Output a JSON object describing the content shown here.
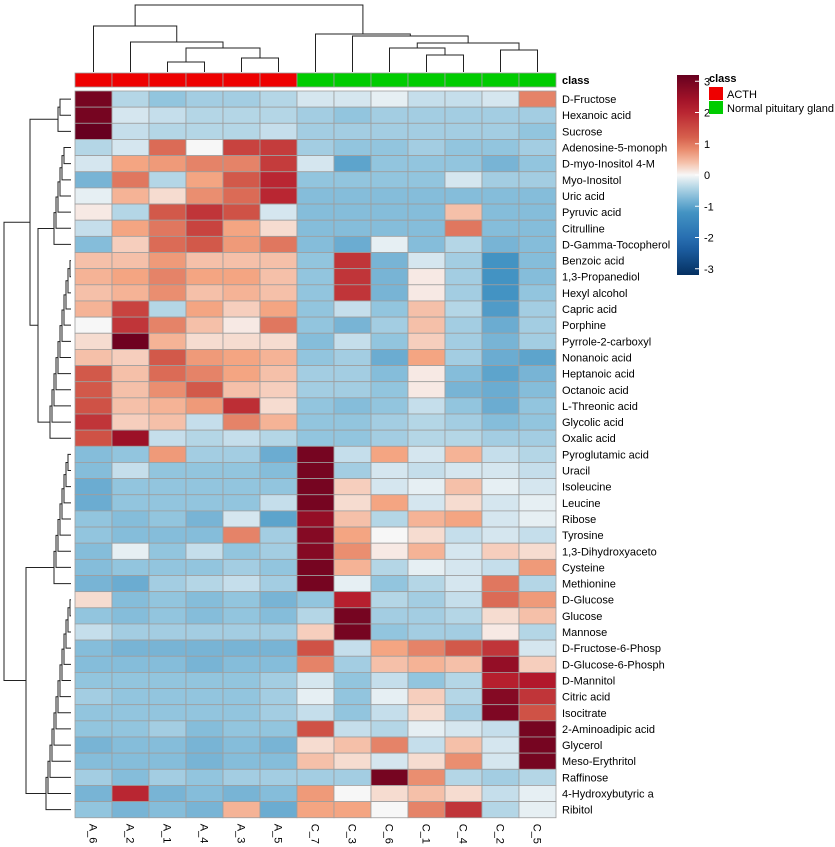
{
  "chart_data": {
    "type": "heatmap",
    "title": "",
    "columns": [
      "A_6",
      "A_2",
      "A_1",
      "A_4",
      "A_3",
      "A_5",
      "C_7",
      "C_3",
      "C_6",
      "C_1",
      "C_4",
      "C_2",
      "C_5"
    ],
    "column_class": [
      "ACTH",
      "ACTH",
      "ACTH",
      "ACTH",
      "ACTH",
      "ACTH",
      "Normal pituitary gland",
      "Normal pituitary gland",
      "Normal pituitary gland",
      "Normal pituitary gland",
      "Normal pituitary gland",
      "Normal pituitary gland",
      "Normal pituitary gland"
    ],
    "rows": [
      "D-Fructose",
      "Hexanoic acid",
      "Sucrose",
      "Adenosine-5-monoph",
      "D-myo-Inositol 4-M",
      "Myo-Inositol",
      "Uric acid",
      "Pyruvic acid",
      "Citrulline",
      "D-Gamma-Tocopherol",
      "Benzoic acid",
      "1,3-Propanediol",
      "Hexyl alcohol",
      "Capric acid",
      "Porphine",
      "Pyrrole-2-carboxyl",
      "Nonanoic acid",
      "Heptanoic acid",
      "Octanoic acid",
      "L-Threonic acid",
      "Glycolic acid",
      "Oxalic acid",
      "Pyroglutamic acid",
      "Uracil",
      "Isoleucine",
      "Leucine",
      "Ribose",
      "Tyrosine",
      "1,3-Dihydroxyaceto",
      "Cysteine",
      "Methionine",
      "D-Glucose",
      "Glucose",
      "Mannose",
      "D-Fructose-6-Phosp",
      "D-Glucose-6-Phosph",
      "D-Mannitol",
      "Citric acid",
      "Isocitrate",
      "2-Aminoadipic acid",
      "Glycerol",
      "Meso-Erythritol",
      "Raffinose",
      "4-Hydroxybutyric a",
      "Ribitol"
    ],
    "values": [
      [
        3.0,
        -0.4,
        -0.6,
        -0.5,
        -0.5,
        -0.4,
        -0.2,
        -0.2,
        -0.1,
        -0.3,
        -0.3,
        -0.2,
        0.9
      ],
      [
        3.0,
        -0.2,
        -0.3,
        -0.4,
        -0.4,
        -0.4,
        -0.5,
        -0.6,
        -0.5,
        -0.5,
        -0.5,
        -0.5,
        -0.5
      ],
      [
        3.2,
        -0.3,
        -0.4,
        -0.4,
        -0.4,
        -0.3,
        -0.5,
        -0.5,
        -0.5,
        -0.5,
        -0.5,
        -0.5,
        -0.6
      ],
      [
        -0.4,
        -0.2,
        1.1,
        0.0,
        1.6,
        1.7,
        -0.5,
        -0.6,
        -0.6,
        -0.5,
        -0.6,
        -0.6,
        -0.5
      ],
      [
        -0.2,
        0.6,
        0.7,
        0.9,
        0.9,
        1.7,
        -0.2,
        -1.0,
        -0.6,
        -0.6,
        -0.6,
        -0.8,
        -0.6
      ],
      [
        -0.8,
        1.0,
        -0.4,
        0.6,
        1.3,
        2.0,
        -0.6,
        -0.6,
        -0.6,
        -0.6,
        -0.2,
        -0.5,
        -0.5
      ],
      [
        -0.1,
        0.5,
        0.2,
        0.8,
        1.1,
        2.0,
        -0.7,
        -0.7,
        -0.7,
        -0.7,
        -0.7,
        -0.7,
        -0.7
      ],
      [
        0.1,
        -0.4,
        1.3,
        1.8,
        1.4,
        -0.2,
        -0.7,
        -0.7,
        -0.7,
        -0.7,
        0.4,
        -0.7,
        -0.7
      ],
      [
        -0.3,
        0.6,
        1.0,
        1.6,
        0.6,
        0.2,
        -0.7,
        -0.7,
        -0.7,
        -0.7,
        1.0,
        -0.7,
        -0.7
      ],
      [
        -0.7,
        0.3,
        1.1,
        1.3,
        0.7,
        1.0,
        -0.7,
        -0.9,
        -0.1,
        -0.7,
        -0.4,
        -0.8,
        -0.7
      ],
      [
        0.4,
        0.4,
        0.7,
        0.4,
        0.4,
        0.4,
        -0.6,
        1.8,
        -0.8,
        -0.2,
        -0.5,
        -1.2,
        -0.7
      ],
      [
        0.5,
        0.6,
        0.9,
        0.6,
        0.6,
        0.4,
        -0.6,
        1.8,
        -0.8,
        0.1,
        -0.5,
        -1.2,
        -0.7
      ],
      [
        0.4,
        0.5,
        0.8,
        0.4,
        0.5,
        0.4,
        -0.6,
        1.8,
        -0.8,
        0.1,
        -0.5,
        -1.2,
        -0.6
      ],
      [
        0.5,
        1.6,
        -0.4,
        0.6,
        0.3,
        0.6,
        -0.6,
        -0.3,
        -0.6,
        0.4,
        -0.4,
        -1.1,
        -0.5
      ],
      [
        0.0,
        1.8,
        0.9,
        0.4,
        0.1,
        1.0,
        -0.6,
        -0.8,
        -0.5,
        0.4,
        -0.5,
        -0.9,
        -0.5
      ],
      [
        0.2,
        3.1,
        0.5,
        0.2,
        0.2,
        0.2,
        -0.7,
        -0.3,
        -0.6,
        0.3,
        -0.5,
        -0.8,
        -0.5
      ],
      [
        0.4,
        0.3,
        1.3,
        0.7,
        0.6,
        0.5,
        -0.6,
        -0.5,
        -0.9,
        0.6,
        -0.5,
        -0.9,
        -1.0
      ],
      [
        1.3,
        0.4,
        1.1,
        0.9,
        0.6,
        0.4,
        -0.5,
        -0.5,
        -0.7,
        0.1,
        -0.7,
        -1.0,
        -0.8
      ],
      [
        1.3,
        0.4,
        0.8,
        1.3,
        0.4,
        0.3,
        -0.5,
        -0.5,
        -0.6,
        0.1,
        -0.8,
        -0.9,
        -0.7
      ],
      [
        1.4,
        0.4,
        0.5,
        0.7,
        1.9,
        0.2,
        -0.6,
        -0.7,
        -0.6,
        -0.3,
        -0.6,
        -0.9,
        -0.6
      ],
      [
        1.8,
        0.3,
        0.4,
        -0.3,
        0.9,
        0.5,
        -0.6,
        -0.6,
        -0.5,
        -0.4,
        -0.5,
        -0.7,
        -0.6
      ],
      [
        1.4,
        2.5,
        -0.3,
        -0.4,
        -0.3,
        -0.4,
        -0.6,
        -0.6,
        -0.5,
        -0.4,
        -0.4,
        -0.5,
        -0.5
      ],
      [
        -0.7,
        -0.6,
        0.7,
        -0.5,
        -0.5,
        -0.9,
        3.0,
        -0.3,
        0.6,
        -0.2,
        0.5,
        -0.3,
        -0.4
      ],
      [
        -0.7,
        -0.3,
        -0.6,
        -0.6,
        -0.6,
        -0.7,
        3.0,
        -0.5,
        -0.2,
        -0.3,
        -0.2,
        -0.2,
        -0.3
      ],
      [
        -0.9,
        -0.6,
        -0.6,
        -0.6,
        -0.6,
        -0.6,
        3.0,
        0.3,
        -0.2,
        -0.1,
        0.4,
        -0.1,
        -0.2
      ],
      [
        -0.9,
        -0.6,
        -0.6,
        -0.6,
        -0.6,
        -0.3,
        3.0,
        0.2,
        0.6,
        -0.2,
        0.2,
        -0.2,
        -0.1
      ],
      [
        -0.6,
        -0.7,
        -0.6,
        -0.8,
        -0.2,
        -1.0,
        2.6,
        0.4,
        -0.4,
        0.5,
        0.6,
        -0.2,
        -0.1
      ],
      [
        -0.6,
        -0.7,
        -0.7,
        -0.7,
        0.9,
        -0.5,
        2.8,
        0.6,
        0.0,
        0.2,
        -0.3,
        -0.2,
        -0.3
      ],
      [
        -0.7,
        -0.1,
        -0.6,
        -0.3,
        -0.6,
        -0.5,
        2.8,
        0.8,
        0.1,
        0.5,
        -0.2,
        0.3,
        0.2
      ],
      [
        -0.7,
        -0.6,
        -0.6,
        -0.6,
        -0.5,
        -0.6,
        3.0,
        0.5,
        -0.4,
        -0.1,
        -0.2,
        -0.3,
        0.7
      ],
      [
        -0.8,
        -0.9,
        -0.5,
        -0.4,
        -0.3,
        -0.5,
        3.0,
        -0.1,
        -0.6,
        -0.4,
        -0.2,
        1.0,
        -0.4
      ],
      [
        0.2,
        -0.7,
        -0.6,
        -0.7,
        -0.6,
        -0.8,
        -0.6,
        2.1,
        -0.4,
        -0.5,
        -0.3,
        1.1,
        0.7
      ],
      [
        -0.6,
        -0.7,
        -0.6,
        -0.7,
        -0.6,
        -0.7,
        -0.4,
        3.0,
        -0.5,
        -0.5,
        -0.4,
        0.2,
        0.4
      ],
      [
        -0.3,
        -0.5,
        -0.5,
        -0.5,
        -0.5,
        -0.5,
        0.3,
        3.0,
        -0.6,
        -0.5,
        -0.5,
        0.1,
        -0.4
      ],
      [
        -0.7,
        -0.8,
        -0.8,
        -0.8,
        -0.8,
        -0.8,
        1.4,
        -0.3,
        0.6,
        0.9,
        1.3,
        1.8,
        -0.2
      ],
      [
        -0.7,
        -0.7,
        -0.7,
        -0.8,
        -0.7,
        -0.7,
        0.9,
        -0.5,
        0.4,
        0.5,
        0.4,
        2.6,
        0.3
      ],
      [
        -0.6,
        -0.6,
        -0.6,
        -0.6,
        -0.6,
        -0.5,
        -0.2,
        -0.6,
        -0.3,
        -0.6,
        -0.4,
        2.1,
        2.2
      ],
      [
        -0.5,
        -0.6,
        -0.6,
        -0.6,
        -0.6,
        -0.5,
        -0.1,
        -0.6,
        -0.1,
        0.3,
        -0.4,
        2.8,
        1.8
      ],
      [
        -0.6,
        -0.6,
        -0.6,
        -0.6,
        -0.6,
        -0.5,
        -0.3,
        -0.6,
        -0.3,
        0.2,
        -0.5,
        2.9,
        1.4
      ],
      [
        -0.6,
        -0.6,
        -0.5,
        -0.7,
        -0.6,
        -0.6,
        1.4,
        -0.3,
        -0.4,
        -0.1,
        -0.2,
        -0.3,
        3.0
      ],
      [
        -0.8,
        -0.7,
        -0.7,
        -0.8,
        -0.7,
        -0.8,
        0.2,
        0.4,
        0.9,
        -0.3,
        0.4,
        -0.2,
        3.0
      ],
      [
        -0.7,
        -0.7,
        -0.7,
        -0.8,
        -0.7,
        -0.7,
        0.4,
        0.2,
        -0.2,
        0.2,
        0.8,
        -0.2,
        3.0
      ],
      [
        -0.5,
        -0.7,
        -0.5,
        -0.6,
        -0.5,
        -0.5,
        -0.5,
        -0.5,
        3.0,
        0.8,
        -0.4,
        -0.5,
        -0.4
      ],
      [
        -0.8,
        2.0,
        -0.8,
        -0.7,
        -0.8,
        -0.7,
        0.7,
        0.0,
        0.2,
        0.4,
        0.2,
        -0.3,
        -0.1
      ],
      [
        -0.6,
        -0.8,
        -0.7,
        -0.8,
        0.5,
        -0.9,
        0.6,
        0.6,
        0.0,
        0.9,
        1.8,
        -0.4,
        -0.1
      ]
    ],
    "class_row_label": "class",
    "colorbar": {
      "min": -3.2,
      "max": 3.2,
      "ticks": [
        3,
        2,
        1,
        0,
        -1,
        -2,
        -3
      ]
    },
    "legend": {
      "title": "class",
      "entries": [
        {
          "label": "ACTH",
          "color": "#ee0000"
        },
        {
          "label": "Normal pituitary gland",
          "color": "#00cc00"
        }
      ]
    },
    "colors": {
      "low": "#053061",
      "mid": "#f7f7f7",
      "high": "#67001f",
      "cell_border": "#9e9e9e"
    }
  }
}
